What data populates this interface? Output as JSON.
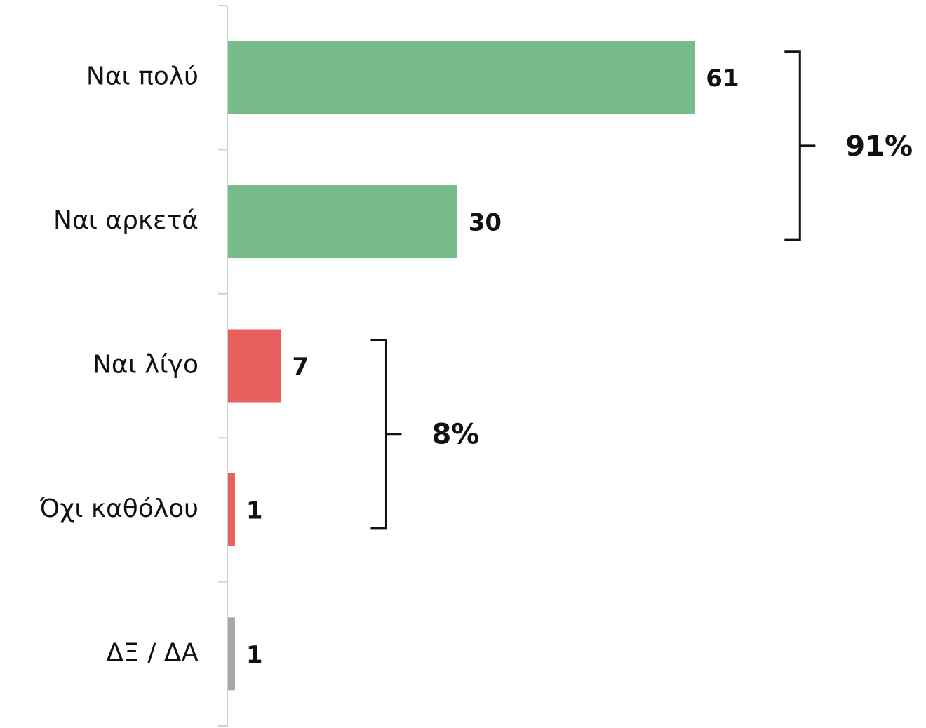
{
  "chart_data": {
    "type": "hbar",
    "categories": [
      "Ναι πολύ",
      "Ναι αρκετά",
      "Ναι λίγο",
      "Όχι καθόλου",
      "ΔΞ / ΔΑ"
    ],
    "values": [
      61,
      30,
      7,
      1,
      1
    ],
    "colors": [
      "#77bb8a",
      "#77bb8a",
      "#e85f60",
      "#e85f60",
      "#a8a8a8"
    ],
    "xlim": [
      0,
      91
    ],
    "groups": [
      {
        "value": 91,
        "label": "91%"
      },
      {
        "value": 8,
        "label": "8%"
      }
    ]
  }
}
